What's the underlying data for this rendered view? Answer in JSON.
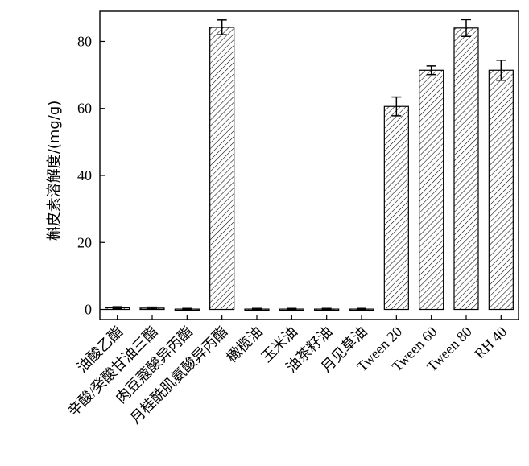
{
  "chart_data": {
    "type": "bar",
    "categories": [
      "油酸乙酯",
      "辛酸/癸酸甘油三酯",
      "肉豆蔻酸异丙酯",
      "月桂酰肌氨酸异丙酯",
      "橄榄油",
      "玉米油",
      "油茶籽油",
      "月见草油",
      "Tween 20",
      "Tween 60",
      "Tween 80",
      "RH 40"
    ],
    "values": [
      0.5,
      0.4,
      0.1,
      84.2,
      0.1,
      0.1,
      0.1,
      0.1,
      60.6,
      71.4,
      84.0,
      71.4
    ],
    "errors": [
      0.3,
      0.3,
      0.2,
      2.2,
      0.2,
      0.2,
      0.2,
      0.2,
      2.8,
      1.3,
      2.5,
      3.0
    ],
    "title": "",
    "xlabel": "",
    "ylabel": "槲皮素溶解度/(mg/g)",
    "ylim": [
      -3,
      89
    ],
    "yticks": [
      0,
      20,
      40,
      60,
      80
    ],
    "grid": false,
    "legend": "none",
    "bar_fill": "hatched",
    "colors": {
      "bar_stroke": "#000000",
      "hatch": "#000000",
      "background": "#ffffff"
    }
  }
}
